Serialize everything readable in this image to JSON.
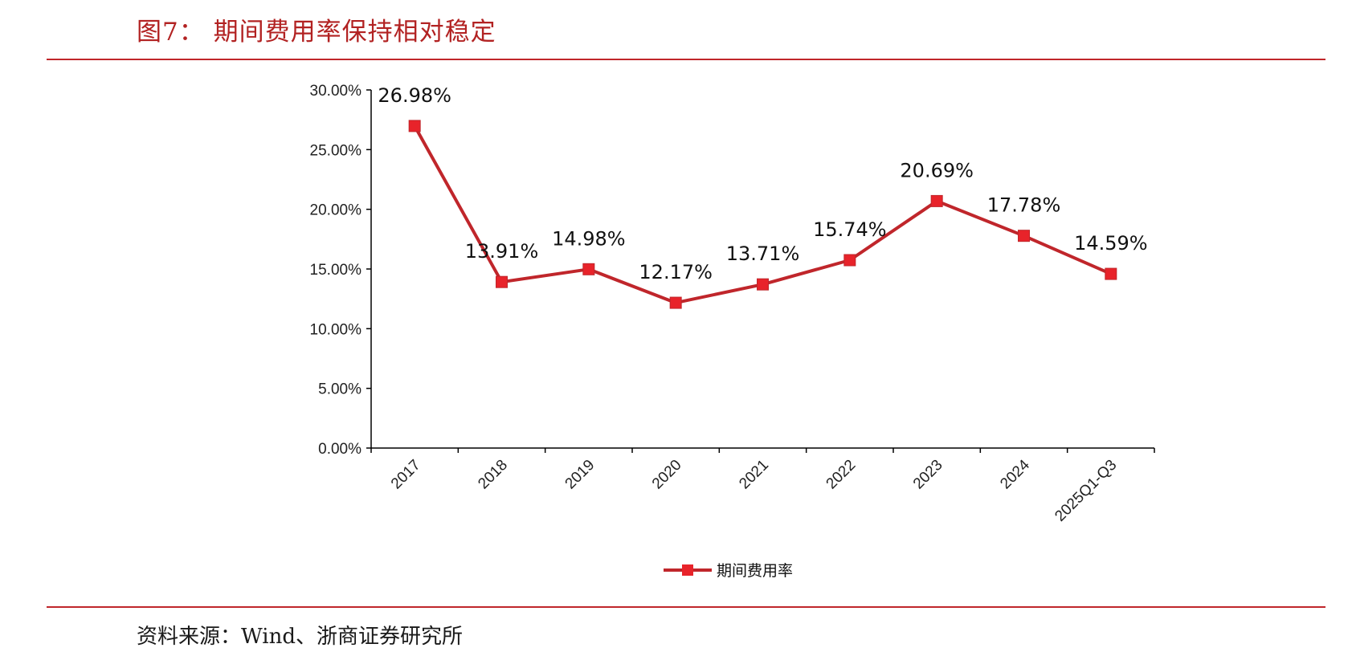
{
  "figure": {
    "title": "图7：  期间费用率保持相对稳定",
    "source": "资料来源：Wind、浙商证券研究所"
  },
  "colors": {
    "accent": "#c0262b",
    "series_line": "#c0262b",
    "series_marker": "#e8232a",
    "axis": "#000000"
  },
  "chart_data": {
    "type": "line",
    "categories": [
      "2017",
      "2018",
      "2019",
      "2020",
      "2021",
      "2022",
      "2023",
      "2024",
      "2025Q1-Q3"
    ],
    "series": [
      {
        "name": "期间费用率",
        "values": [
          26.98,
          13.91,
          14.98,
          12.17,
          13.71,
          15.74,
          20.69,
          17.78,
          14.59
        ],
        "labels": [
          "26.98%",
          "13.91%",
          "14.98%",
          "12.17%",
          "13.71%",
          "15.74%",
          "20.69%",
          "17.78%",
          "14.59%"
        ]
      }
    ],
    "ylim": [
      0,
      30
    ],
    "yticks": [
      "0.00%",
      "5.00%",
      "10.00%",
      "15.00%",
      "20.00%",
      "25.00%",
      "30.00%"
    ],
    "xlabel": "",
    "ylabel": "",
    "grid": false,
    "legend": "bottom-center",
    "marker": "square"
  }
}
